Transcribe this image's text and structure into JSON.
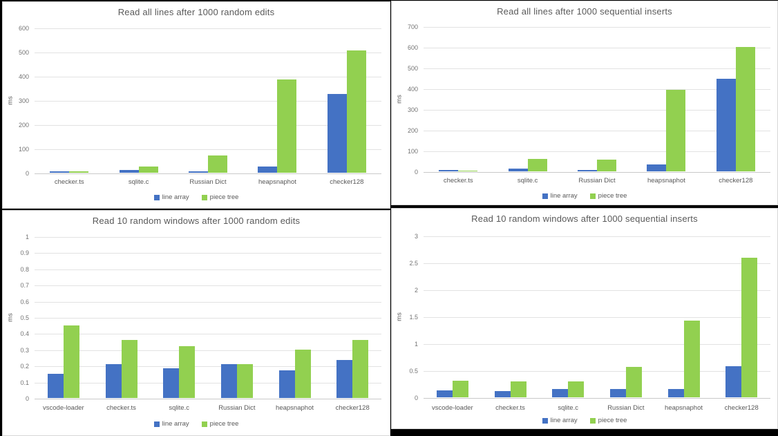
{
  "page": {
    "background_color": "#000000",
    "panel_border_color": "#d6d6d6",
    "gridline_color": "#e2e2e2",
    "title_color": "#595959",
    "tick_color": "#737373"
  },
  "chart_data": [
    {
      "type": "bar",
      "title": "Read all lines after 1000 random edits",
      "ylabel": "ms",
      "ylim": [
        0,
        600
      ],
      "yticks": [
        "0",
        "100",
        "200",
        "300",
        "400",
        "500",
        "600"
      ],
      "grid": true,
      "legend_position": "bottom",
      "categories": [
        "checker.ts",
        "sqlite.c",
        "Russian Dict",
        "heapsnaphot",
        "checker128"
      ],
      "series": [
        {
          "name": "line array",
          "color": "#4472C4",
          "values": [
            5,
            12,
            5,
            25,
            325
          ]
        },
        {
          "name": "piece tree",
          "color": "#92D050",
          "values": [
            7,
            27,
            72,
            387,
            505
          ]
        }
      ]
    },
    {
      "type": "bar",
      "title": "Read all lines after 1000 sequential inserts",
      "ylabel": "ms",
      "ylim": [
        0,
        700
      ],
      "yticks": [
        "0",
        "100",
        "200",
        "300",
        "400",
        "500",
        "600",
        "700"
      ],
      "grid": true,
      "legend_position": "bottom",
      "categories": [
        "checker.ts",
        "sqlite.c",
        "Russian Dict",
        "heapsnaphot",
        "checker128"
      ],
      "series": [
        {
          "name": "line array",
          "color": "#4472C4",
          "values": [
            5,
            12,
            8,
            32,
            448
          ]
        },
        {
          "name": "piece tree",
          "color": "#92D050",
          "values": [
            4,
            60,
            57,
            393,
            600
          ]
        }
      ]
    },
    {
      "type": "bar",
      "title": "Read 10 random windows after 1000 random edits",
      "ylabel": "ms",
      "ylim": [
        0,
        1
      ],
      "yticks": [
        "0",
        "0.1",
        "0.2",
        "0.3",
        "0.4",
        "0.5",
        "0.6",
        "0.7",
        "0.8",
        "0.9",
        "1"
      ],
      "grid": true,
      "legend_position": "bottom",
      "categories": [
        "vscode-loader",
        "checker.ts",
        "sqlite.c",
        "Russian Dict",
        "heapsnaphot",
        "checker128"
      ],
      "series": [
        {
          "name": "line array",
          "color": "#4472C4",
          "values": [
            0.15,
            0.21,
            0.185,
            0.21,
            0.17,
            0.235
          ]
        },
        {
          "name": "piece tree",
          "color": "#92D050",
          "values": [
            0.45,
            0.36,
            0.32,
            0.21,
            0.3,
            0.36
          ]
        }
      ]
    },
    {
      "type": "bar",
      "title": "Read 10 random windows after 1000 sequential inserts",
      "ylabel": "ms",
      "ylim": [
        0,
        3
      ],
      "yticks": [
        "0",
        "0.5",
        "1",
        "1.5",
        "2",
        "2.5",
        "3"
      ],
      "grid": true,
      "legend_position": "bottom",
      "categories": [
        "vscode-loader",
        "checker.ts",
        "sqlite.c",
        "Russian Dict",
        "heapsnaphot",
        "checker128"
      ],
      "series": [
        {
          "name": "line array",
          "color": "#4472C4",
          "values": [
            0.13,
            0.12,
            0.16,
            0.15,
            0.16,
            0.58
          ]
        },
        {
          "name": "piece tree",
          "color": "#92D050",
          "values": [
            0.31,
            0.29,
            0.29,
            0.56,
            1.42,
            2.59
          ]
        }
      ]
    }
  ]
}
